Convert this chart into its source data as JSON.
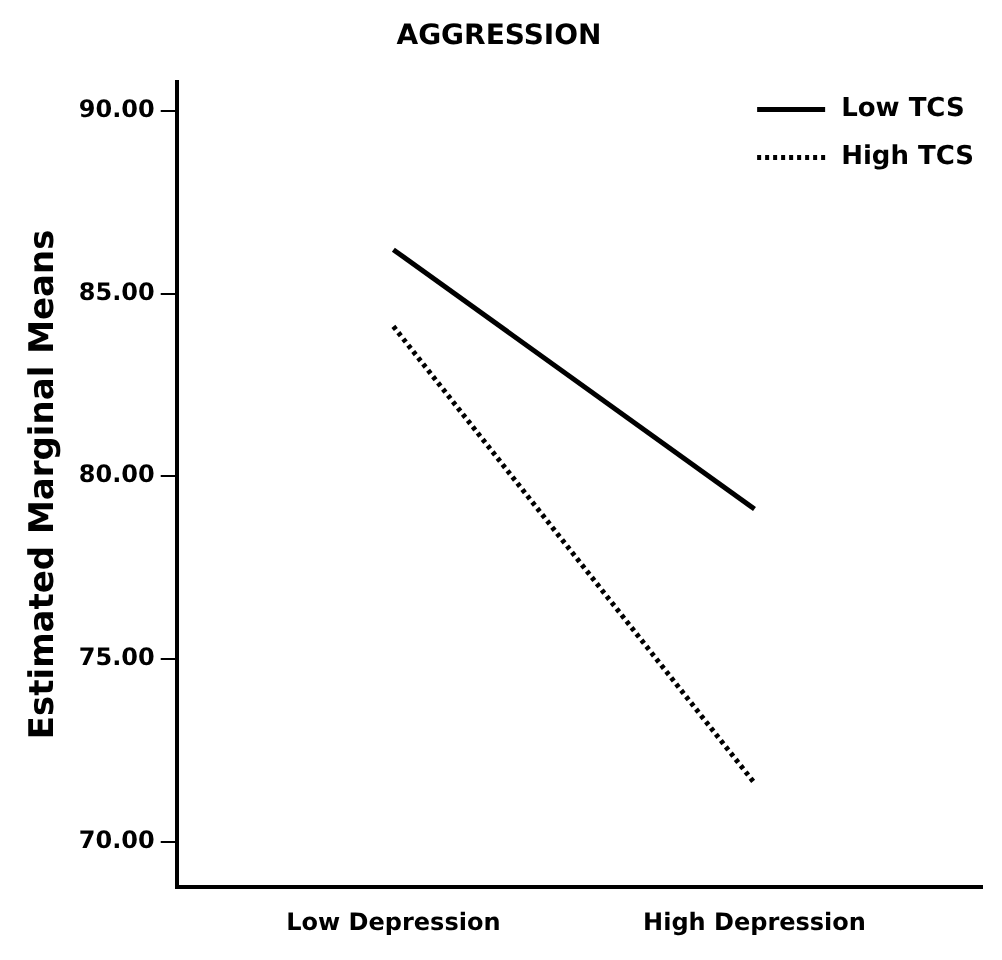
{
  "chart_data": {
    "type": "line",
    "title": "AGGRESSION",
    "ylabel": "Estimated Marginal Means",
    "categories": [
      "Low Depression",
      "High Depression"
    ],
    "series": [
      {
        "name": "Low TCS",
        "color": "#000000",
        "line_style": "solid",
        "values": [
          86.2,
          79.1
        ]
      },
      {
        "name": "High TCS",
        "color": "#000000",
        "line_style": "dotted",
        "values": [
          84.1,
          71.6
        ]
      }
    ],
    "ylim": [
      68.75,
      90.8
    ],
    "yticks": [
      {
        "value": 70,
        "label": "70.00"
      },
      {
        "value": 75,
        "label": "75.00"
      },
      {
        "value": 80,
        "label": "80.00"
      },
      {
        "value": 85,
        "label": "85.00"
      },
      {
        "value": 90,
        "label": "90.00"
      }
    ],
    "grid": false,
    "legend": "top right",
    "marker": "none"
  }
}
